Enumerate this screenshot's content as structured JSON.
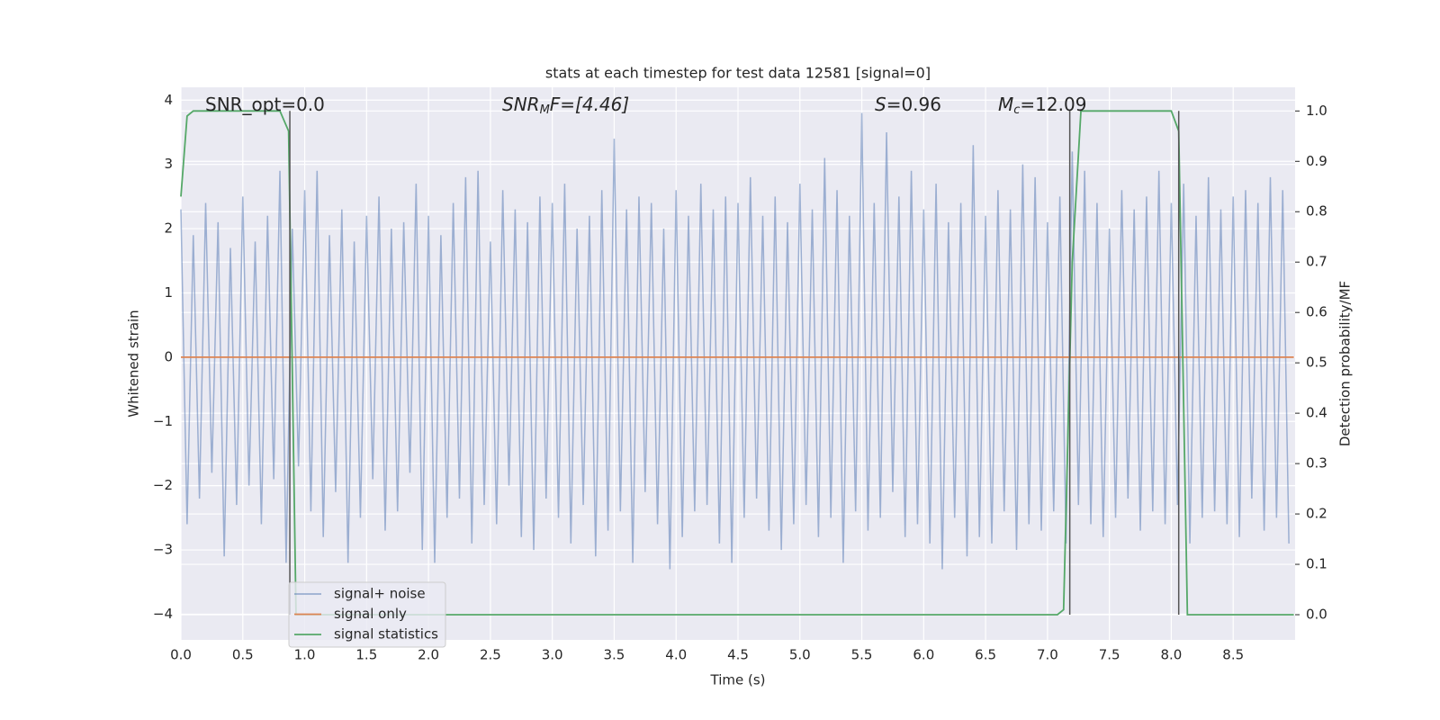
{
  "chart_data": {
    "type": "line",
    "title": "stats at each timestep for test data 12581 [signal=0]",
    "xlabel": "Time (s)",
    "ylabel": "Whitened strain",
    "y2label": "Detection probability/MF",
    "xlim": [
      0,
      9
    ],
    "ylim": [
      -4.4,
      4.2
    ],
    "y2lim": [
      -0.05,
      1.047
    ],
    "xticks": [
      {
        "value": 0,
        "label": "0.0"
      },
      0.5,
      {
        "value": 1,
        "label": "1.0"
      },
      1.5,
      {
        "value": 2,
        "label": "2.0"
      },
      2.5,
      {
        "value": 3,
        "label": "3.0"
      },
      3.5,
      {
        "value": 4,
        "label": "4.0"
      },
      4.5,
      {
        "value": 5,
        "label": "5.0"
      },
      5.5,
      {
        "value": 6,
        "label": "6.0"
      },
      6.5,
      {
        "value": 7,
        "label": "7.0"
      },
      7.5,
      {
        "value": 8,
        "label": "8.0"
      },
      8.5
    ],
    "yticks": [
      {
        "value": -4,
        "label": "−4"
      },
      {
        "value": -3,
        "label": "−3"
      },
      {
        "value": -2,
        "label": "−2"
      },
      {
        "value": -1,
        "label": "−1"
      },
      0,
      1,
      2,
      3,
      4
    ],
    "y2ticks": [
      {
        "value": 0,
        "label": "0.0"
      },
      0.1,
      0.2,
      0.3,
      0.4,
      0.5,
      0.6,
      0.7,
      0.8,
      0.9,
      {
        "value": 1,
        "label": "1.0"
      }
    ],
    "grid": true,
    "legend_loc": "lower left",
    "annotations": [
      {
        "pre": "SNR_opt=0.0"
      },
      {
        "pre": "SNR",
        "sub": "M",
        "post": "F=[4.46]"
      },
      {
        "pre": "S",
        "post": "=0.96"
      },
      {
        "pre": "M",
        "sub": "c",
        "post": "=12.09"
      }
    ],
    "vlines": [
      0.88,
      7.18,
      8.06
    ],
    "vline_color": "#555555",
    "series": [
      {
        "name": "signal+ noise",
        "color": "#4c72b0",
        "alpha": 0.5,
        "x": [
          0,
          0.05,
          0.1,
          0.15,
          0.2,
          0.25,
          0.3,
          0.35,
          0.4,
          0.45,
          0.5,
          0.55,
          0.6,
          0.65,
          0.7,
          0.75,
          0.8,
          0.85,
          0.9,
          0.95,
          1,
          1.05,
          1.1,
          1.15,
          1.2,
          1.25,
          1.3,
          1.35,
          1.4,
          1.45,
          1.5,
          1.55,
          1.6,
          1.65,
          1.7,
          1.75,
          1.8,
          1.85,
          1.9,
          1.95,
          2,
          2.05,
          2.1,
          2.15,
          2.2,
          2.25,
          2.3,
          2.35,
          2.4,
          2.45,
          2.5,
          2.55,
          2.6,
          2.65,
          2.7,
          2.75,
          2.8,
          2.85,
          2.9,
          2.95,
          3,
          3.05,
          3.1,
          3.15,
          3.2,
          3.25,
          3.3,
          3.35,
          3.4,
          3.45,
          3.5,
          3.55,
          3.6,
          3.65,
          3.7,
          3.75,
          3.8,
          3.85,
          3.9,
          3.95,
          4,
          4.05,
          4.1,
          4.15,
          4.2,
          4.25,
          4.3,
          4.35,
          4.4,
          4.45,
          4.5,
          4.55,
          4.6,
          4.65,
          4.7,
          4.75,
          4.8,
          4.85,
          4.9,
          4.95,
          5,
          5.05,
          5.1,
          5.15,
          5.2,
          5.25,
          5.3,
          5.35,
          5.4,
          5.45,
          5.5,
          5.55,
          5.6,
          5.65,
          5.7,
          5.75,
          5.8,
          5.85,
          5.9,
          5.95,
          6,
          6.05,
          6.1,
          6.15,
          6.2,
          6.25,
          6.3,
          6.35,
          6.4,
          6.45,
          6.5,
          6.55,
          6.6,
          6.65,
          6.7,
          6.75,
          6.8,
          6.85,
          6.9,
          6.95,
          7,
          7.05,
          7.1,
          7.15,
          7.2,
          7.25,
          7.3,
          7.35,
          7.4,
          7.45,
          7.5,
          7.55,
          7.6,
          7.65,
          7.7,
          7.75,
          7.8,
          7.85,
          7.9,
          7.95,
          8,
          8.05,
          8.1,
          8.15,
          8.2,
          8.25,
          8.3,
          8.35,
          8.4,
          8.45,
          8.5,
          8.55,
          8.6,
          8.65,
          8.7,
          8.75,
          8.8,
          8.85,
          8.9,
          8.95
        ],
        "values": [
          2.3,
          -2.6,
          1.9,
          -2.2,
          2.4,
          -1.8,
          2.1,
          -3.1,
          1.7,
          -2.3,
          2.5,
          -2.0,
          1.8,
          -2.6,
          2.2,
          -1.9,
          2.9,
          -3.2,
          2.0,
          -1.7,
          2.6,
          -2.4,
          2.9,
          -2.8,
          1.9,
          -2.1,
          2.3,
          -3.2,
          1.8,
          -2.5,
          2.2,
          -1.9,
          2.5,
          -2.7,
          2.0,
          -2.4,
          2.1,
          -1.8,
          2.7,
          -3.0,
          2.2,
          -3.2,
          1.9,
          -2.5,
          2.4,
          -2.2,
          2.8,
          -2.9,
          2.9,
          -2.3,
          1.8,
          -2.6,
          2.6,
          -2.0,
          2.3,
          -2.8,
          2.1,
          -3.0,
          2.5,
          -2.2,
          2.4,
          -2.5,
          2.7,
          -2.9,
          2.0,
          -2.3,
          2.2,
          -3.1,
          2.6,
          -2.7,
          3.4,
          -2.4,
          2.3,
          -3.2,
          2.5,
          -2.1,
          2.4,
          -2.6,
          2.0,
          -3.3,
          2.6,
          -2.8,
          2.2,
          -2.4,
          2.7,
          -2.3,
          2.3,
          -2.9,
          2.5,
          -3.2,
          2.4,
          -2.5,
          2.8,
          -2.2,
          2.2,
          -2.7,
          2.5,
          -3.0,
          2.1,
          -2.6,
          2.7,
          -2.3,
          2.3,
          -2.8,
          3.1,
          -2.5,
          2.6,
          -3.2,
          2.2,
          -2.4,
          3.8,
          -2.7,
          2.4,
          -2.5,
          3.5,
          -2.1,
          2.5,
          -2.8,
          2.9,
          -2.6,
          2.3,
          -2.9,
          2.7,
          -3.3,
          2.1,
          -2.5,
          2.4,
          -3.1,
          3.3,
          -2.8,
          2.2,
          -2.9,
          2.6,
          -2.4,
          2.3,
          -3.0,
          3.0,
          -2.6,
          2.8,
          -2.7,
          2.1,
          -2.4,
          2.5,
          -2.9,
          3.2,
          -2.3,
          2.9,
          -2.6,
          2.4,
          -2.8,
          2.0,
          -2.5,
          2.6,
          -2.2,
          2.3,
          -2.7,
          2.5,
          -2.4,
          2.9,
          -2.6,
          2.4,
          -2.3,
          2.7,
          -2.9,
          2.2,
          -2.5,
          2.8,
          -2.4,
          2.3,
          -2.6,
          2.5,
          -2.8,
          2.6,
          -2.2,
          2.4,
          -2.7,
          2.8,
          -2.5,
          2.6,
          -2.9
        ]
      },
      {
        "name": "signal only",
        "color": "#dd8452",
        "alpha": 1,
        "x": [
          0,
          8.99
        ],
        "values": [
          0,
          0
        ]
      },
      {
        "name": "signal statistics",
        "color": "#55a868",
        "alpha": 1,
        "axis": "y2",
        "x": [
          0,
          0.05,
          0.1,
          0.8,
          0.87,
          0.93,
          7.08,
          7.13,
          7.2,
          7.27,
          8.0,
          8.06,
          8.13,
          8.99
        ],
        "values": [
          0.83,
          0.99,
          1.0,
          1.0,
          0.96,
          0.0,
          0.0,
          0.01,
          0.7,
          1.0,
          1.0,
          0.96,
          0.0,
          0.0
        ]
      }
    ]
  }
}
